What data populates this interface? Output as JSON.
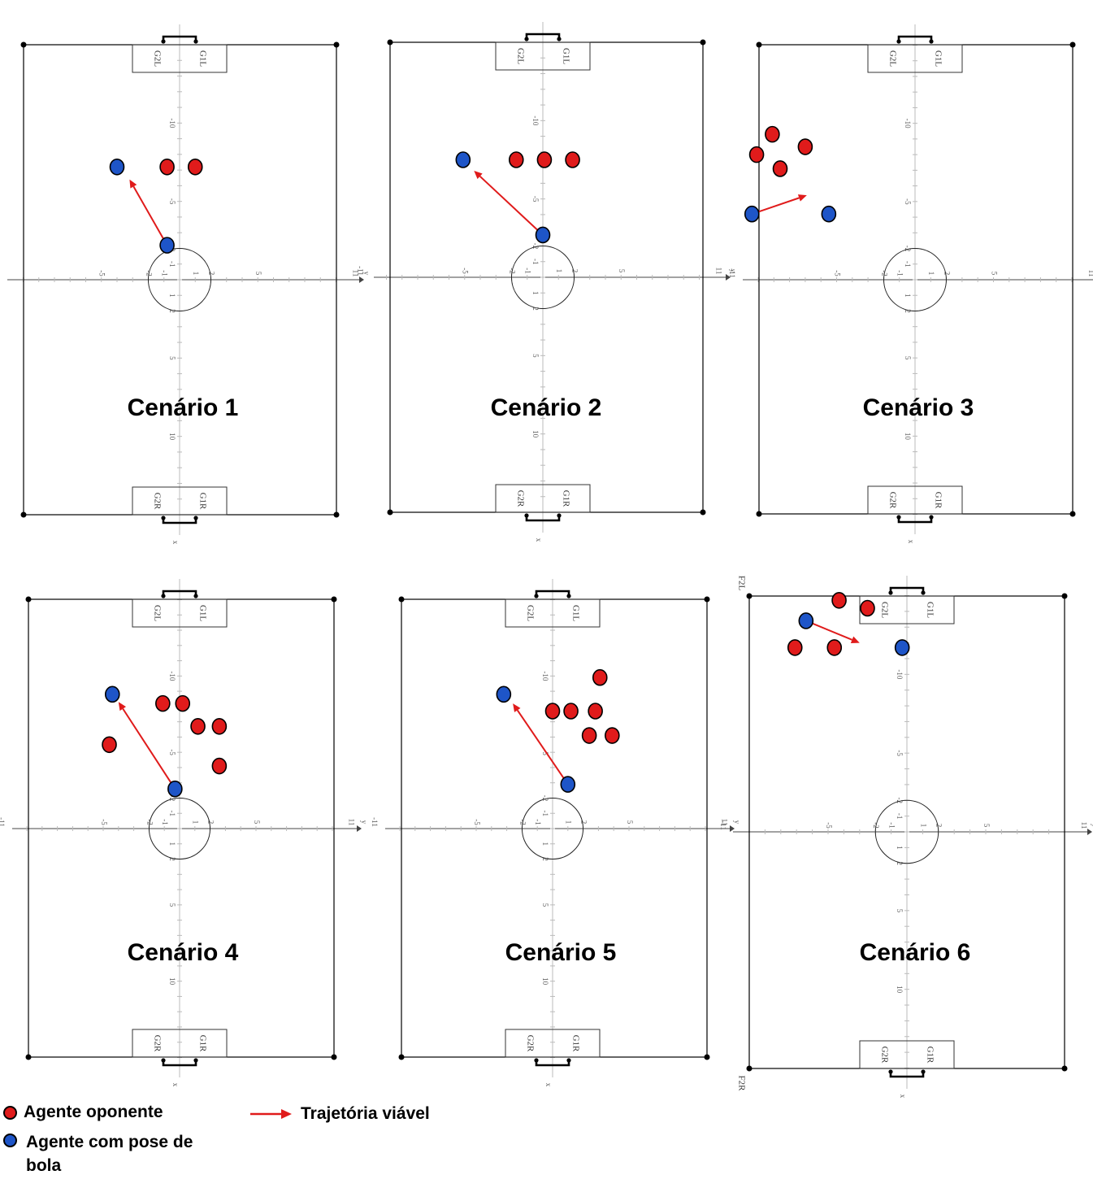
{
  "colors": {
    "opponent": "#e01b1b",
    "ball_agent": "#1e55c8",
    "trajectory": "#e01b1b",
    "lines": "#000000",
    "axis": "#888888"
  },
  "goal_labels": {
    "top_left": "G2L",
    "top_right": "G1L",
    "bottom_left": "G2R",
    "bottom_right": "G1R"
  },
  "axis_labels": {
    "x": "x",
    "y": "y"
  },
  "extra_labels": {
    "top": "F2L",
    "bottom": "F2R"
  },
  "scenarios": [
    {
      "title": "Cenário 1",
      "opponents": [
        [
          -7.2,
          -0.8
        ],
        [
          -7.2,
          1.0
        ]
      ],
      "ball_agents": [
        [
          -7.2,
          -4.0
        ],
        [
          -2.2,
          -0.8
        ]
      ],
      "trajectory": {
        "from": [
          -2.2,
          -0.8
        ],
        "to": [
          -6.4,
          -3.2
        ]
      }
    },
    {
      "title": "Cenário 2",
      "opponents": [
        [
          -7.5,
          -1.7
        ],
        [
          -7.5,
          0.1
        ],
        [
          -7.5,
          1.9
        ]
      ],
      "ball_agents": [
        [
          -7.5,
          -5.1
        ],
        [
          -2.7,
          0.0
        ]
      ],
      "trajectory": {
        "from": [
          -2.7,
          0.0
        ],
        "to": [
          -6.8,
          -4.4
        ]
      }
    },
    {
      "title": "Cenário 3",
      "opponents": [
        [
          -9.3,
          -9.1
        ],
        [
          -8.0,
          -10.1
        ],
        [
          -7.1,
          -8.6
        ],
        [
          -8.5,
          -7.0
        ]
      ],
      "ball_agents": [
        [
          -4.2,
          -10.4
        ],
        [
          -4.2,
          -5.5
        ]
      ],
      "trajectory": {
        "from": [
          -4.2,
          -10.4
        ],
        "to": [
          -5.4,
          -6.9
        ]
      }
    },
    {
      "title": "Cenário 4",
      "opponents": [
        [
          -8.2,
          -1.1
        ],
        [
          -8.2,
          0.2
        ],
        [
          -6.7,
          1.2
        ],
        [
          -6.7,
          2.6
        ],
        [
          -5.5,
          -4.6
        ],
        [
          -4.1,
          2.6
        ]
      ],
      "ball_agents": [
        [
          -8.8,
          -4.4
        ],
        [
          -2.6,
          -0.3
        ]
      ],
      "trajectory": {
        "from": [
          -2.6,
          -0.3
        ],
        "to": [
          -8.3,
          -4.0
        ]
      }
    },
    {
      "title": "Cenário 5",
      "opponents": [
        [
          -9.9,
          3.1
        ],
        [
          -7.7,
          0.0
        ],
        [
          -7.7,
          1.2
        ],
        [
          -7.7,
          2.8
        ],
        [
          -6.1,
          2.4
        ],
        [
          -6.1,
          3.9
        ]
      ],
      "ball_agents": [
        [
          -8.8,
          -3.2
        ],
        [
          -2.9,
          1.0
        ]
      ],
      "trajectory": {
        "from": [
          -2.9,
          1.0
        ],
        "to": [
          -8.2,
          -2.6
        ]
      }
    },
    {
      "title": "Cenário 6",
      "opponents": [
        [
          -14.7,
          -4.3
        ],
        [
          -14.2,
          -2.5
        ],
        [
          -11.7,
          -7.1
        ],
        [
          -11.7,
          -4.6
        ]
      ],
      "ball_agents": [
        [
          -13.4,
          -6.4
        ],
        [
          -11.7,
          -0.3
        ]
      ],
      "trajectory": {
        "from": [
          -13.4,
          -6.4
        ],
        "to": [
          -12.0,
          -3.0
        ]
      }
    }
  ],
  "legend": {
    "opponent": "Agente oponente",
    "ball_agent": "Agente com pose de bola",
    "trajectory": "Trajetória viável"
  }
}
